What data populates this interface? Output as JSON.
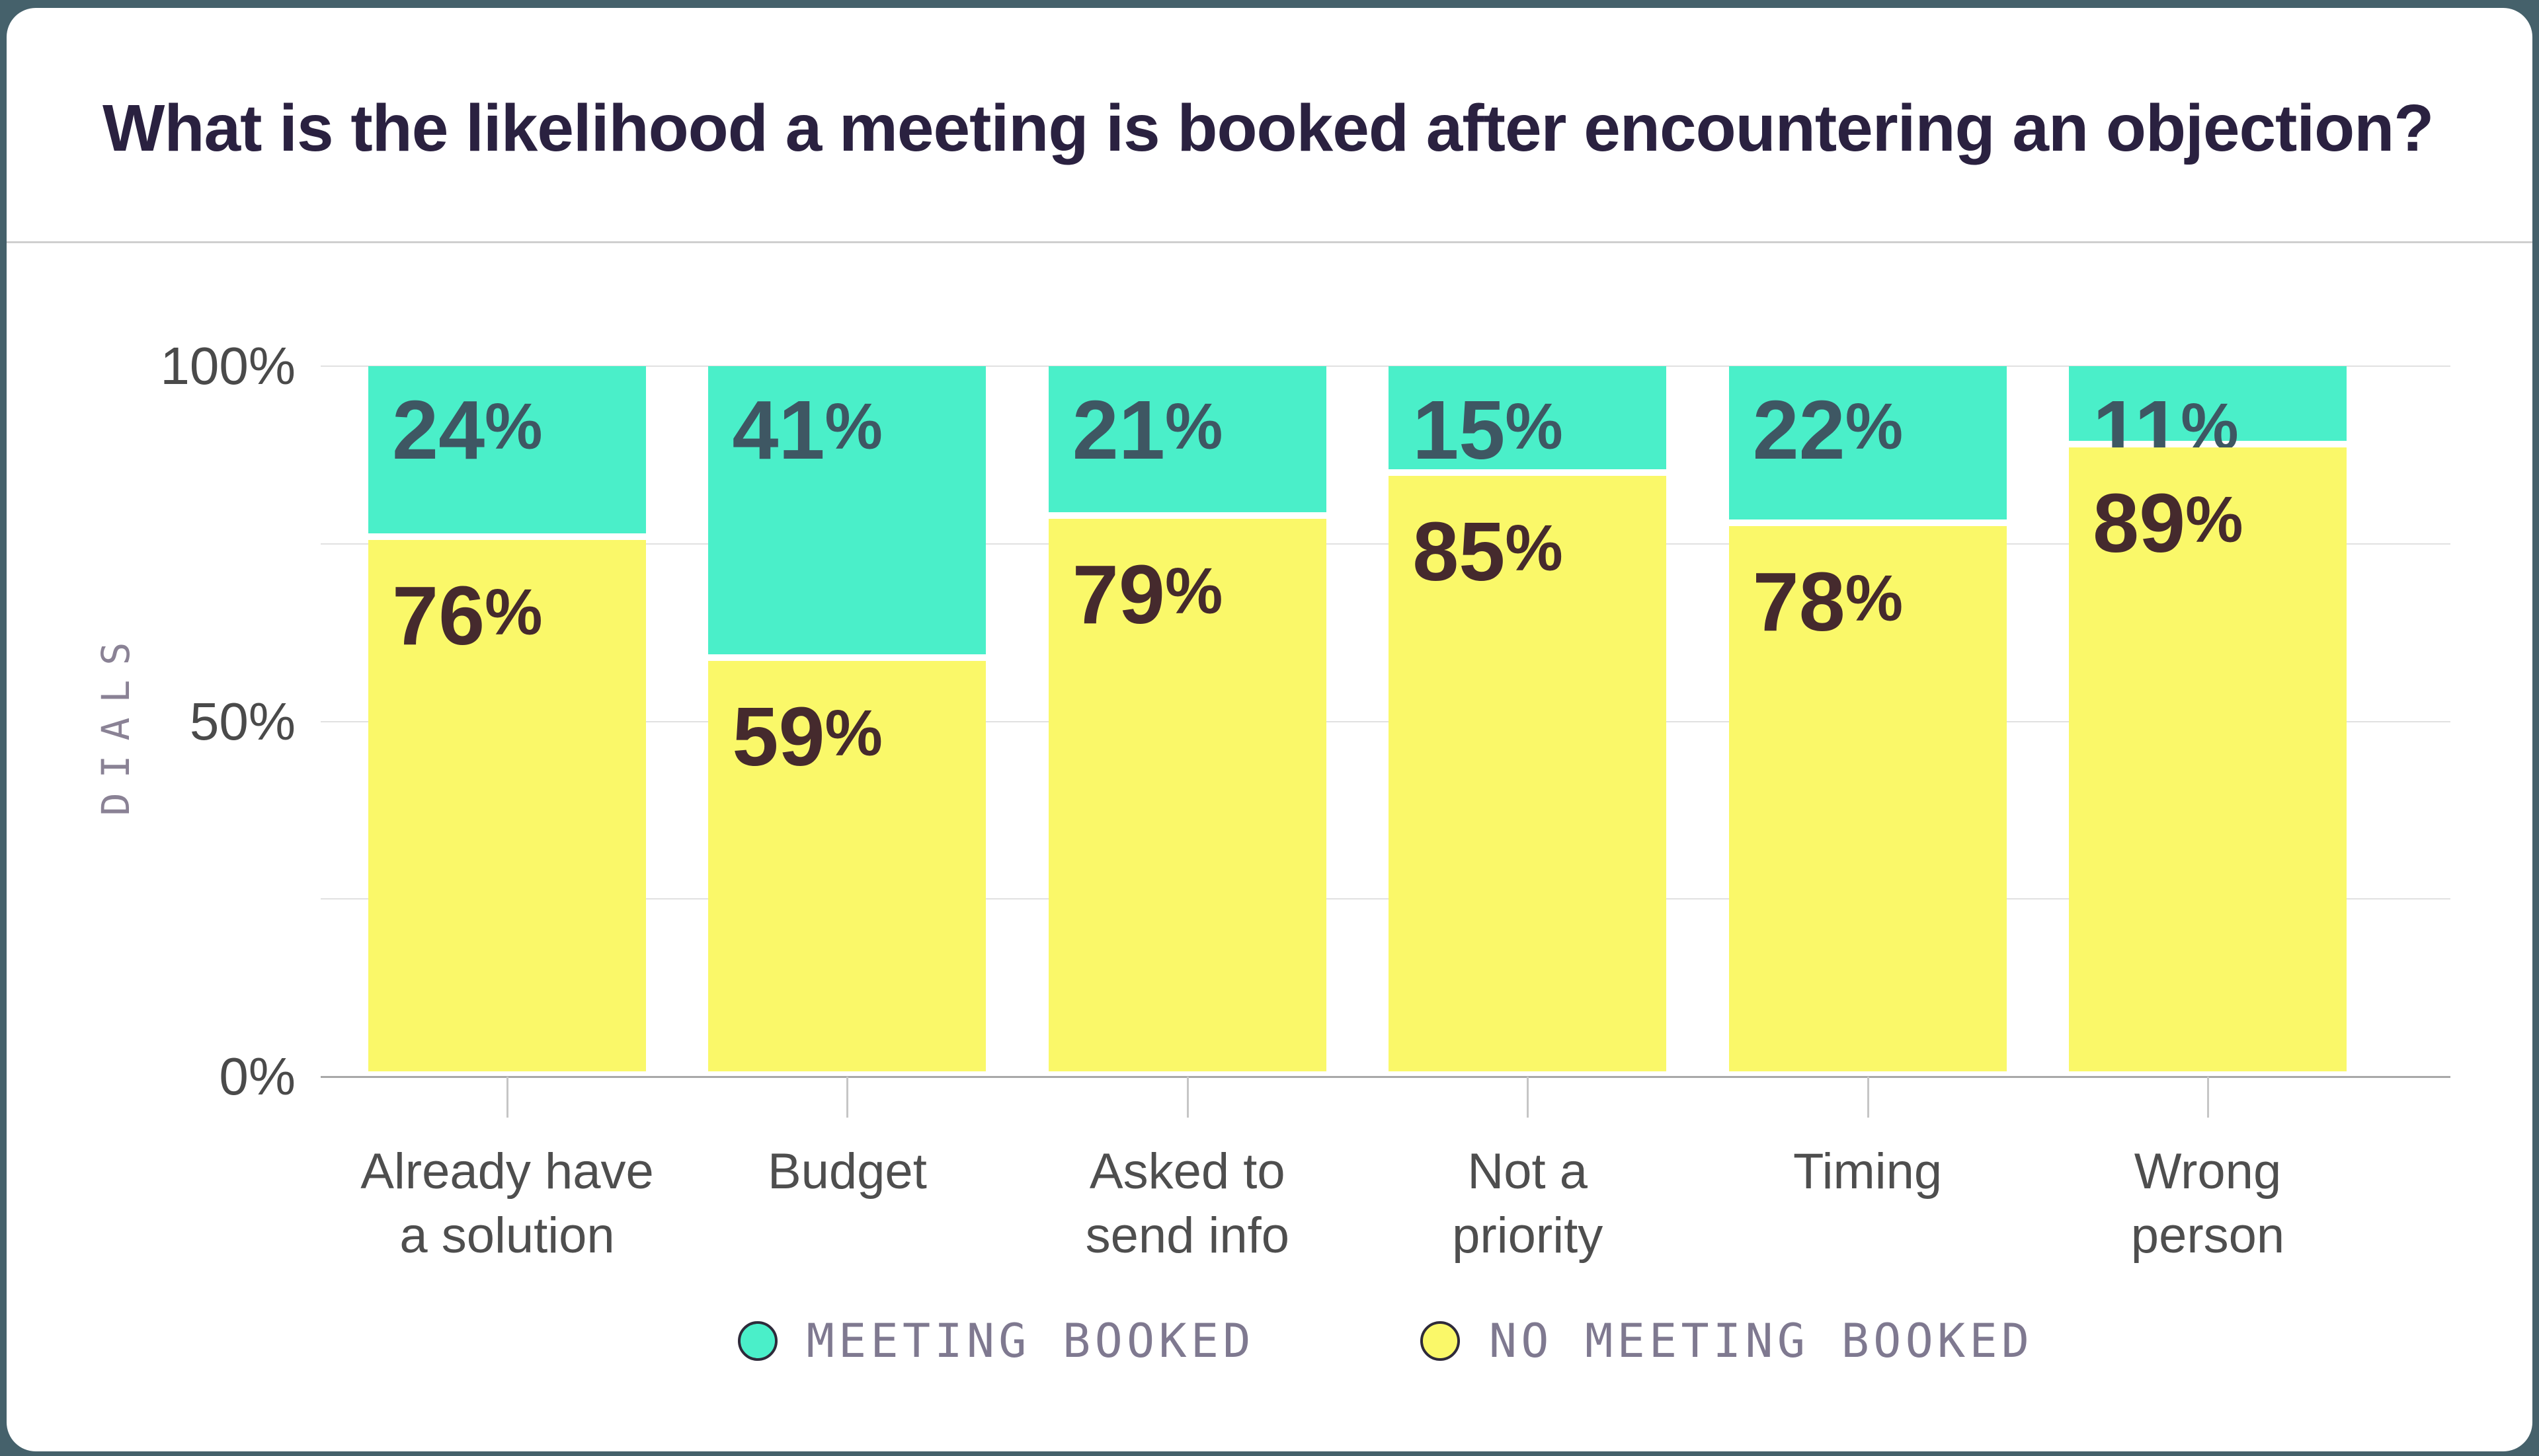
{
  "page": {
    "background_color": "#45616B",
    "card_color": "#FFFFFF"
  },
  "header": {
    "title": "What is the likelihood a meeting is booked after encountering an objection?"
  },
  "chart_data": {
    "type": "bar",
    "stacked": true,
    "title": "What is the likelihood a meeting is booked after encountering an objection?",
    "categories": [
      [
        "Already have",
        "a solution"
      ],
      [
        "Budget"
      ],
      [
        "Asked to",
        "send info"
      ],
      [
        "Not a",
        "priority"
      ],
      [
        "Timing"
      ],
      [
        "Wrong",
        "person"
      ]
    ],
    "series": [
      {
        "name": "MEETING BOOKED",
        "color": "#4AEFC9",
        "label_color": "#3E5763",
        "values": [
          24,
          41,
          21,
          15,
          22,
          11
        ]
      },
      {
        "name": "NO MEETING BOOKED",
        "color": "#FAF869",
        "label_color": "#452A2D",
        "values": [
          76,
          59,
          79,
          85,
          78,
          89
        ]
      }
    ],
    "value_suffix": "%",
    "ylabel": "DIALS",
    "ylim": [
      0,
      100
    ],
    "yticks": [
      {
        "value": 100,
        "label": "100%"
      },
      {
        "value": 50,
        "label": "50%"
      },
      {
        "value": 0,
        "label": "0%"
      }
    ],
    "gridlines": [
      100,
      75,
      50,
      25,
      0
    ],
    "grid": true,
    "legend_position": "bottom"
  }
}
